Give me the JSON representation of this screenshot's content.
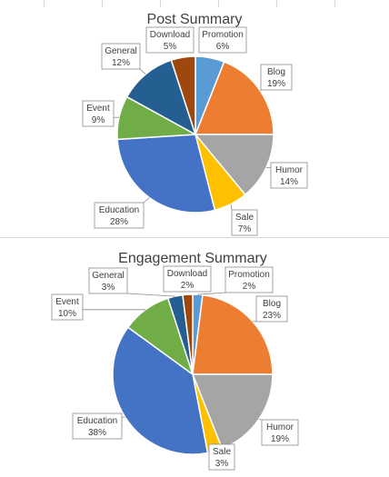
{
  "chart_data": [
    {
      "type": "pie",
      "title": "Post Summary",
      "categories": [
        "Promotion",
        "Blog",
        "Humor",
        "Sale",
        "Education",
        "Event",
        "General",
        "Download"
      ],
      "values": [
        6,
        19,
        14,
        7,
        28,
        9,
        12,
        5
      ],
      "value_labels": [
        "6%",
        "19%",
        "14%",
        "7%",
        "28%",
        "9%",
        "12%",
        "5%"
      ],
      "colors": [
        "#5b9bd5",
        "#ed7d31",
        "#a5a5a5",
        "#ffc000",
        "#4472c4",
        "#70ad47",
        "#255e91",
        "#9e480e"
      ],
      "legend": "none",
      "data_labels": "callout"
    },
    {
      "type": "pie",
      "title": "Engagement Summary",
      "categories": [
        "Promotion",
        "Blog",
        "Humor",
        "Sale",
        "Education",
        "Event",
        "General",
        "Download"
      ],
      "values": [
        2,
        23,
        19,
        3,
        38,
        10,
        3,
        2
      ],
      "value_labels": [
        "2%",
        "23%",
        "19%",
        "3%",
        "38%",
        "10%",
        "3%",
        "2%"
      ],
      "colors": [
        "#5b9bd5",
        "#ed7d31",
        "#a5a5a5",
        "#ffc000",
        "#4472c4",
        "#70ad47",
        "#255e91",
        "#9e480e"
      ],
      "legend": "none",
      "data_labels": "callout"
    }
  ]
}
